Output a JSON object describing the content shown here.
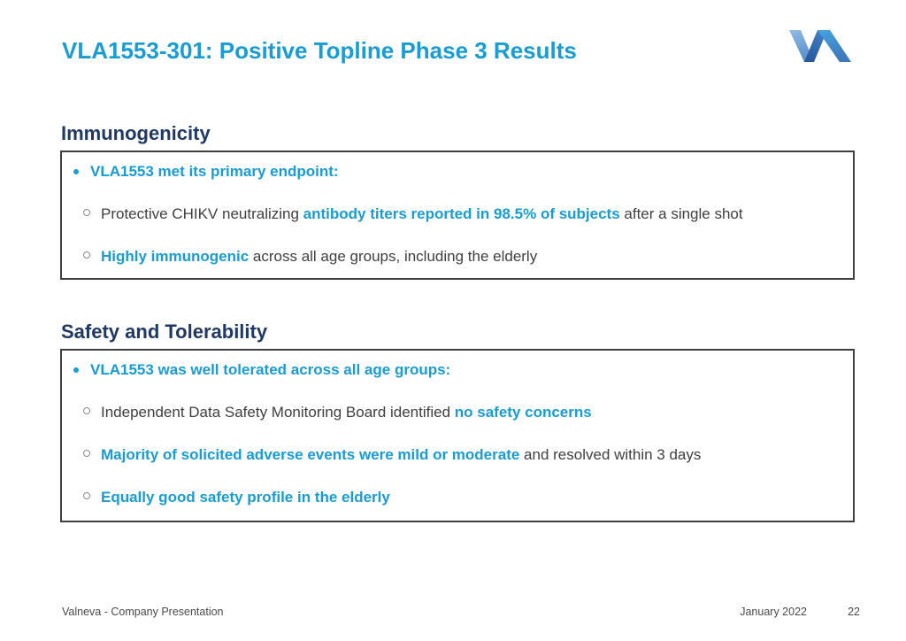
{
  "slide": {
    "title": "VLA1553-301: Positive Topline Phase 3 Results",
    "logo": "valneva-logo"
  },
  "colors": {
    "accent_cyan": "#189CD4",
    "heading_navy": "#1F3864",
    "body_text": "#3F3F3F",
    "box_border": "#3F3F3F",
    "footer_text": "#4A4A4A"
  },
  "icons": {
    "main_bullet": "•",
    "sub_bullet": "○"
  },
  "sections": [
    {
      "heading": "Immunogenicity",
      "bullet": "VLA1553 met its primary endpoint:",
      "sub_bullets": [
        {
          "segments": [
            {
              "text": "Protective CHIKV neutralizing ",
              "style": "normal"
            },
            {
              "text": "antibody titers reported in 98.5% of subjects",
              "style": "accent"
            },
            {
              "text": " after a single shot",
              "style": "normal"
            }
          ]
        },
        {
          "segments": [
            {
              "text": "Highly immunogenic",
              "style": "accent"
            },
            {
              "text": " across all age groups, including the elderly",
              "style": "normal"
            }
          ]
        }
      ]
    },
    {
      "heading": "Safety and Tolerability",
      "bullet": "VLA1553 was well tolerated across all age groups:",
      "sub_bullets": [
        {
          "segments": [
            {
              "text": "Independent Data Safety Monitoring Board identified ",
              "style": "normal"
            },
            {
              "text": "no safety concerns",
              "style": "accent"
            }
          ]
        },
        {
          "segments": [
            {
              "text": "Majority of solicited adverse events were mild or moderate",
              "style": "accent"
            },
            {
              "text": " and resolved within 3 days",
              "style": "normal"
            }
          ]
        },
        {
          "segments": [
            {
              "text": "Equally good safety profile in the elderly",
              "style": "accent"
            }
          ]
        }
      ]
    }
  ],
  "footer": {
    "left": "Valneva - Company Presentation",
    "date": "January 2022",
    "page_number": "22"
  }
}
